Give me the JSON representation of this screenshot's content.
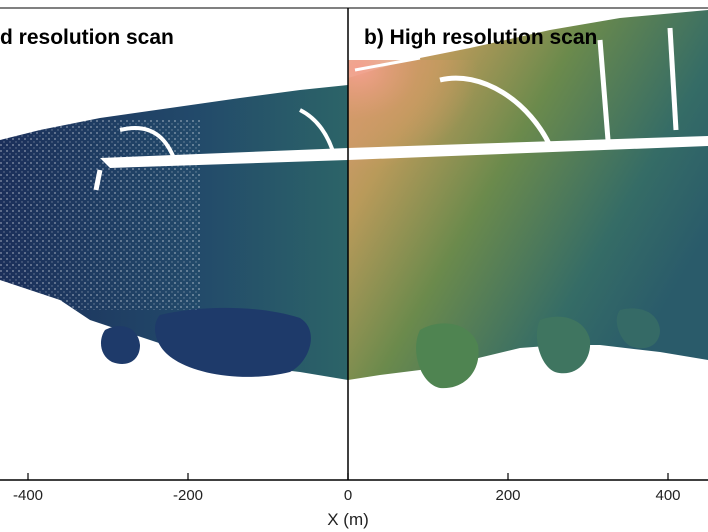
{
  "panels": [
    {
      "title": "d resolution scan"
    },
    {
      "title": "b) High resolution scan"
    }
  ],
  "axis": {
    "xlabel": "X (m)",
    "ticks": [
      {
        "value": -400,
        "label": "-400"
      },
      {
        "value": -200,
        "label": "-200"
      },
      {
        "value": 0,
        "label": "0"
      },
      {
        "value": 200,
        "label": "200"
      },
      {
        "value": 400,
        "label": "400"
      }
    ]
  },
  "colors": {
    "dense_low": "#1a3a5e",
    "mid": "#2e6b6a",
    "green": "#5e8a4a",
    "amber": "#c88a55",
    "peach": "#ee9c86",
    "frame": "#000000"
  }
}
